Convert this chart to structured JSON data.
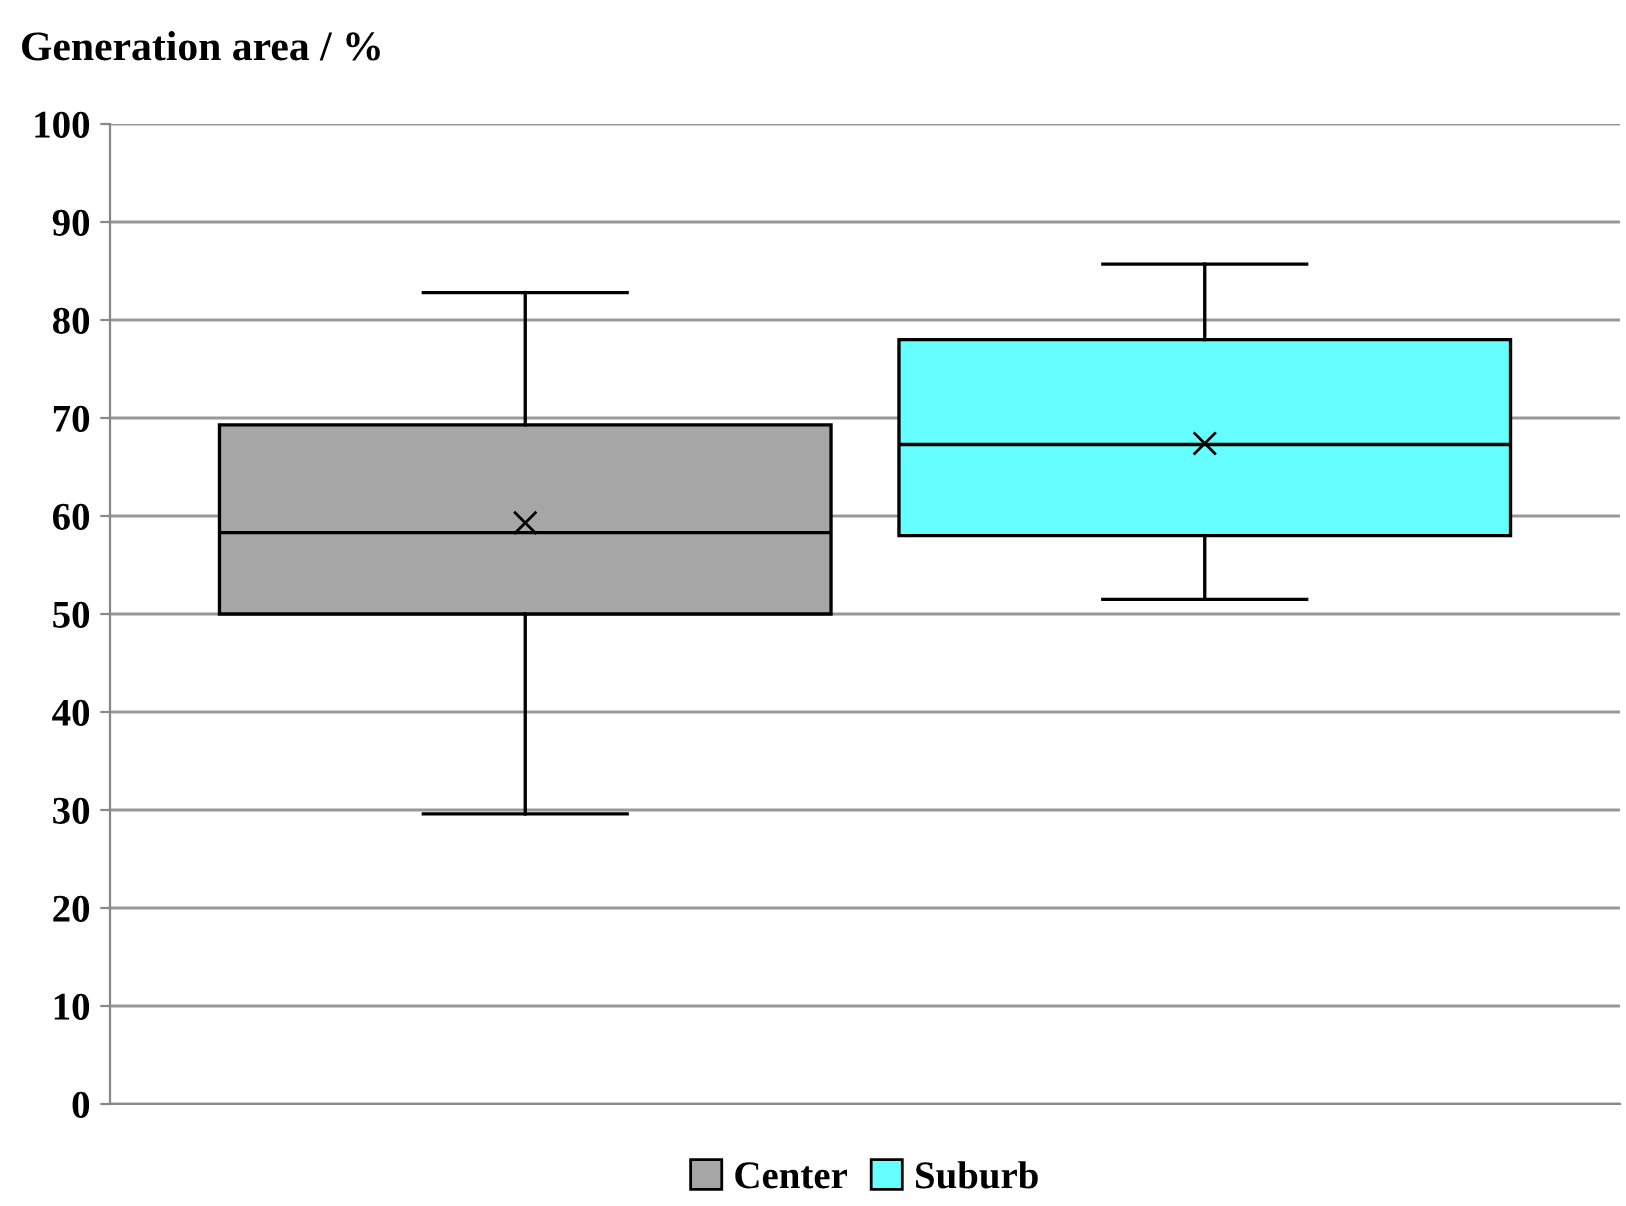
{
  "chart_data": {
    "type": "box",
    "ylabel": "Generation area / %",
    "categories": [
      null
    ],
    "series": [
      {
        "name": "Center",
        "color": "#a6a6a6",
        "boxes": [
          {
            "low": 29.6,
            "q1": 50.0,
            "median": 58.3,
            "q3": 69.3,
            "high": 82.8,
            "mean": 59.3
          }
        ]
      },
      {
        "name": "Suburb",
        "color": "#66ffff",
        "boxes": [
          {
            "low": 51.5,
            "q1": 58.0,
            "median": 67.3,
            "q3": 78.0,
            "high": 85.7,
            "mean": 67.4
          }
        ]
      }
    ],
    "ylim": [
      0,
      100
    ],
    "yticks": [
      0,
      10,
      20,
      30,
      40,
      50,
      60,
      70,
      80,
      90,
      100
    ],
    "grid": "y",
    "legend": "bottom",
    "marker": "cross"
  }
}
